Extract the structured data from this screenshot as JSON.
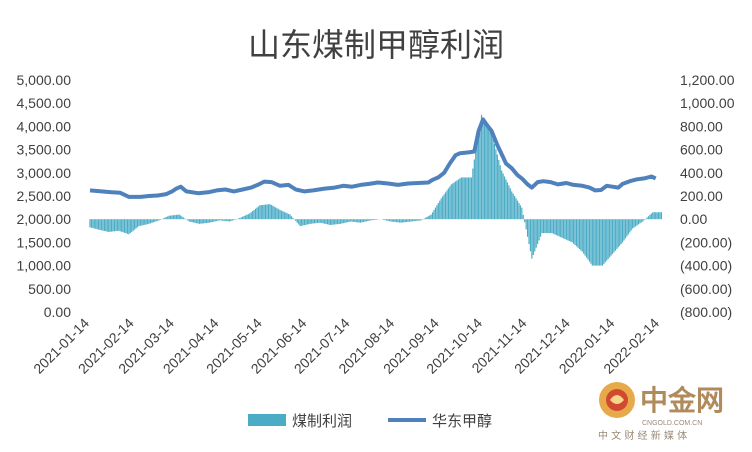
{
  "chart_data": {
    "type": "bar+line",
    "title": "山东煤制甲醇利润",
    "left_axis": {
      "ticks": [
        "0.00",
        "500.00",
        "1,000.00",
        "1,500.00",
        "2,000.00",
        "2,500.00",
        "3,000.00",
        "3,500.00",
        "4,000.00",
        "4,500.00",
        "5,000.00"
      ],
      "ylim": [
        0,
        5000
      ]
    },
    "right_axis": {
      "ticks": [
        "(800.00)",
        "(600.00)",
        "(400.00)",
        "(200.00)",
        "0.00",
        "200.00",
        "400.00",
        "600.00",
        "800.00",
        "1,000.00",
        "1,200.00"
      ],
      "ylim": [
        -800,
        1200
      ]
    },
    "x_dates": [
      "2021-01-14",
      "2021-02-14",
      "2021-03-14",
      "2021-04-14",
      "2021-05-14",
      "2021-06-14",
      "2021-07-14",
      "2021-08-14",
      "2021-09-14",
      "2021-10-14",
      "2021-11-14",
      "2021-12-14",
      "2022-01-14",
      "2022-02-14"
    ],
    "legend": [
      {
        "name": "煤制利润",
        "color": "#4bacc6",
        "kind": "bar",
        "axis": "right"
      },
      {
        "name": "华东甲醇",
        "color": "#4f81bd",
        "kind": "line",
        "axis": "left"
      }
    ],
    "series": [
      {
        "name": "华东甲醇",
        "type": "line",
        "axis": "left",
        "points": [
          [
            "2021-01-14",
            2620
          ],
          [
            "2021-01-22",
            2600
          ],
          [
            "2021-01-29",
            2580
          ],
          [
            "2021-02-04",
            2570
          ],
          [
            "2021-02-10",
            2480
          ],
          [
            "2021-02-18",
            2480
          ],
          [
            "2021-02-24",
            2500
          ],
          [
            "2021-03-02",
            2510
          ],
          [
            "2021-03-08",
            2540
          ],
          [
            "2021-03-12",
            2600
          ],
          [
            "2021-03-15",
            2660
          ],
          [
            "2021-03-18",
            2700
          ],
          [
            "2021-03-22",
            2600
          ],
          [
            "2021-03-30",
            2560
          ],
          [
            "2021-04-06",
            2580
          ],
          [
            "2021-04-12",
            2620
          ],
          [
            "2021-04-18",
            2640
          ],
          [
            "2021-04-24",
            2600
          ],
          [
            "2021-04-30",
            2640
          ],
          [
            "2021-05-06",
            2680
          ],
          [
            "2021-05-12",
            2760
          ],
          [
            "2021-05-15",
            2810
          ],
          [
            "2021-05-20",
            2800
          ],
          [
            "2021-05-26",
            2720
          ],
          [
            "2021-06-01",
            2740
          ],
          [
            "2021-06-06",
            2640
          ],
          [
            "2021-06-12",
            2600
          ],
          [
            "2021-06-18",
            2620
          ],
          [
            "2021-06-26",
            2660
          ],
          [
            "2021-07-03",
            2680
          ],
          [
            "2021-07-09",
            2720
          ],
          [
            "2021-07-15",
            2700
          ],
          [
            "2021-07-21",
            2740
          ],
          [
            "2021-07-27",
            2760
          ],
          [
            "2021-08-02",
            2790
          ],
          [
            "2021-08-09",
            2770
          ],
          [
            "2021-08-16",
            2740
          ],
          [
            "2021-08-23",
            2770
          ],
          [
            "2021-08-30",
            2780
          ],
          [
            "2021-09-06",
            2790
          ],
          [
            "2021-09-09",
            2850
          ],
          [
            "2021-09-13",
            2900
          ],
          [
            "2021-09-17",
            3000
          ],
          [
            "2021-09-21",
            3200
          ],
          [
            "2021-09-25",
            3380
          ],
          [
            "2021-09-28",
            3420
          ],
          [
            "2021-10-04",
            3440
          ],
          [
            "2021-10-08",
            3460
          ],
          [
            "2021-10-11",
            3900
          ],
          [
            "2021-10-14",
            4150
          ],
          [
            "2021-10-17",
            4020
          ],
          [
            "2021-10-20",
            3900
          ],
          [
            "2021-10-24",
            3600
          ],
          [
            "2021-10-27",
            3400
          ],
          [
            "2021-10-30",
            3200
          ],
          [
            "2021-11-03",
            3100
          ],
          [
            "2021-11-07",
            2950
          ],
          [
            "2021-11-10",
            2880
          ],
          [
            "2021-11-14",
            2750
          ],
          [
            "2021-11-17",
            2680
          ],
          [
            "2021-11-21",
            2800
          ],
          [
            "2021-11-25",
            2820
          ],
          [
            "2021-11-30",
            2800
          ],
          [
            "2021-12-05",
            2750
          ],
          [
            "2021-12-11",
            2780
          ],
          [
            "2021-12-16",
            2740
          ],
          [
            "2021-12-22",
            2720
          ],
          [
            "2021-12-27",
            2680
          ],
          [
            "2021-12-31",
            2620
          ],
          [
            "2022-01-04",
            2630
          ],
          [
            "2022-01-08",
            2720
          ],
          [
            "2022-01-12",
            2700
          ],
          [
            "2022-01-16",
            2680
          ],
          [
            "2022-01-19",
            2760
          ],
          [
            "2022-01-24",
            2820
          ],
          [
            "2022-01-29",
            2860
          ],
          [
            "2022-02-03",
            2880
          ],
          [
            "2022-02-08",
            2920
          ],
          [
            "2022-02-11",
            2880
          ]
        ]
      },
      {
        "name": "煤制利润",
        "type": "bar",
        "axis": "right",
        "points": [
          [
            "2021-01-14",
            -70
          ],
          [
            "2021-01-20",
            -90
          ],
          [
            "2021-01-27",
            -110
          ],
          [
            "2021-02-03",
            -100
          ],
          [
            "2021-02-10",
            -130
          ],
          [
            "2021-02-17",
            -60
          ],
          [
            "2021-02-24",
            -40
          ],
          [
            "2021-03-03",
            -10
          ],
          [
            "2021-03-10",
            30
          ],
          [
            "2021-03-17",
            40
          ],
          [
            "2021-03-24",
            -20
          ],
          [
            "2021-03-31",
            -40
          ],
          [
            "2021-04-07",
            -30
          ],
          [
            "2021-04-14",
            -10
          ],
          [
            "2021-04-21",
            -20
          ],
          [
            "2021-04-28",
            10
          ],
          [
            "2021-05-05",
            50
          ],
          [
            "2021-05-12",
            120
          ],
          [
            "2021-05-19",
            130
          ],
          [
            "2021-05-26",
            80
          ],
          [
            "2021-06-02",
            40
          ],
          [
            "2021-06-09",
            -60
          ],
          [
            "2021-06-16",
            -40
          ],
          [
            "2021-06-23",
            -30
          ],
          [
            "2021-06-30",
            -50
          ],
          [
            "2021-07-07",
            -40
          ],
          [
            "2021-07-14",
            -20
          ],
          [
            "2021-07-21",
            -30
          ],
          [
            "2021-07-28",
            -10
          ],
          [
            "2021-08-04",
            0
          ],
          [
            "2021-08-11",
            -20
          ],
          [
            "2021-08-18",
            -30
          ],
          [
            "2021-08-25",
            -20
          ],
          [
            "2021-09-01",
            -10
          ],
          [
            "2021-09-08",
            40
          ],
          [
            "2021-09-15",
            180
          ],
          [
            "2021-09-22",
            300
          ],
          [
            "2021-09-29",
            360
          ],
          [
            "2021-10-06",
            360
          ],
          [
            "2021-10-13",
            900
          ],
          [
            "2021-10-20",
            740
          ],
          [
            "2021-10-27",
            420
          ],
          [
            "2021-11-03",
            240
          ],
          [
            "2021-11-10",
            100
          ],
          [
            "2021-11-17",
            -340
          ],
          [
            "2021-11-24",
            -120
          ],
          [
            "2021-12-01",
            -120
          ],
          [
            "2021-12-08",
            -160
          ],
          [
            "2021-12-15",
            -200
          ],
          [
            "2021-12-22",
            -280
          ],
          [
            "2021-12-29",
            -400
          ],
          [
            "2022-01-05",
            -400
          ],
          [
            "2022-01-12",
            -300
          ],
          [
            "2022-01-19",
            -200
          ],
          [
            "2022-01-26",
            -80
          ],
          [
            "2022-02-02",
            -20
          ],
          [
            "2022-02-09",
            60
          ]
        ]
      }
    ]
  },
  "watermark": {
    "brand_cn": "中金网",
    "brand_url": "CNGOLD.COM.CN",
    "brand_tagline": "中 文 财 经 新 媒 体"
  }
}
